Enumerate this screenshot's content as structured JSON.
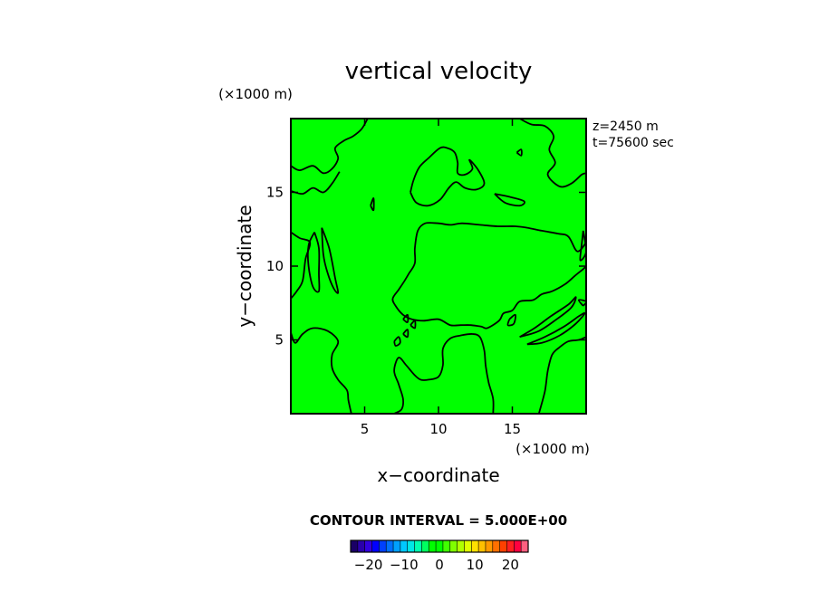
{
  "chart_data": {
    "type": "contour",
    "title": "vertical velocity",
    "xlabel": "x−coordinate",
    "ylabel": "y−coordinate",
    "x_units": "(×1000 m)",
    "y_units": "(×1000 m)",
    "xlim": [
      0,
      20
    ],
    "ylim": [
      0,
      20
    ],
    "x_ticks": [
      5,
      10,
      15
    ],
    "y_ticks": [
      5,
      10,
      15
    ],
    "x_tick_labels": [
      "5",
      "10",
      "15"
    ],
    "y_tick_labels": [
      "5",
      "10",
      "15"
    ],
    "info": [
      "z=2450  m",
      "t=75600  sec"
    ],
    "contour_interval_text": "CONTOUR INTERVAL = 5.000E+00",
    "contour_interval": 5,
    "fill_color": "#00ff00",
    "contour_color": "#000000",
    "colorbar": {
      "range": [
        -25,
        25
      ],
      "tick_values": [
        -20,
        -10,
        0,
        10,
        20
      ],
      "tick_labels": [
        "−20",
        "−10",
        "0",
        "10",
        "20"
      ],
      "colors": [
        "#1a0066",
        "#2a00aa",
        "#3300dd",
        "#0000ff",
        "#0040ff",
        "#0070ff",
        "#00a0ff",
        "#00c8ff",
        "#00e6e6",
        "#00ffb0",
        "#00ff60",
        "#00ff00",
        "#00ff00",
        "#40ff00",
        "#80ff00",
        "#b0ff00",
        "#e0ff00",
        "#ffe000",
        "#ffc000",
        "#ff9900",
        "#ff7000",
        "#ff4000",
        "#ff2020",
        "#ff0040",
        "#ff6080"
      ]
    },
    "contours": [
      [
        [
          0,
          16.8
        ],
        [
          0.6,
          16.5
        ],
        [
          1.5,
          16.8
        ],
        [
          2.2,
          16.3
        ],
        [
          2.8,
          16.6
        ],
        [
          3.2,
          17.3
        ],
        [
          3.0,
          18.0
        ],
        [
          3.6,
          18.5
        ],
        [
          4.2,
          18.8
        ],
        [
          4.8,
          19.3
        ],
        [
          5.2,
          20
        ]
      ],
      [
        [
          0,
          15.1
        ],
        [
          0.8,
          14.9
        ],
        [
          1.5,
          15.3
        ],
        [
          2.2,
          15.0
        ],
        [
          2.8,
          15.6
        ],
        [
          3.3,
          16.4
        ]
      ],
      [
        [
          15.5,
          20
        ],
        [
          16.3,
          19.6
        ],
        [
          17.2,
          19.5
        ],
        [
          17.8,
          18.8
        ],
        [
          17.5,
          17.9
        ],
        [
          17.9,
          17.0
        ],
        [
          17.4,
          16.2
        ],
        [
          18.2,
          15.4
        ],
        [
          19.0,
          15.6
        ],
        [
          19.7,
          16.2
        ],
        [
          20,
          16.3
        ]
      ],
      [
        [
          8.1,
          15.0
        ],
        [
          8.3,
          15.8
        ],
        [
          8.7,
          16.7
        ],
        [
          9.3,
          17.3
        ],
        [
          10.1,
          18.0
        ],
        [
          10.6,
          18.0
        ],
        [
          11.1,
          17.7
        ],
        [
          11.3,
          17.0
        ],
        [
          11.3,
          16.3
        ],
        [
          11.8,
          16.2
        ],
        [
          12.3,
          16.6
        ],
        [
          12.1,
          17.2
        ],
        [
          12.7,
          16.5
        ],
        [
          13.1,
          15.6
        ],
        [
          12.6,
          15.2
        ],
        [
          11.8,
          15.3
        ],
        [
          11.2,
          15.7
        ],
        [
          10.7,
          15.3
        ],
        [
          10.1,
          14.5
        ],
        [
          9.3,
          14.1
        ],
        [
          8.5,
          14.3
        ],
        [
          8.1,
          15.0
        ]
      ],
      [
        [
          5.4,
          14.1
        ],
        [
          5.6,
          14.6
        ],
        [
          5.6,
          13.8
        ],
        [
          5.4,
          14.1
        ]
      ],
      [
        [
          13.8,
          14.9
        ],
        [
          14.8,
          14.7
        ],
        [
          15.8,
          14.4
        ],
        [
          15.5,
          14.1
        ],
        [
          14.5,
          14.3
        ],
        [
          13.8,
          14.9
        ]
      ],
      [
        [
          15.3,
          17.7
        ],
        [
          15.6,
          17.9
        ],
        [
          15.6,
          17.5
        ],
        [
          15.3,
          17.7
        ]
      ],
      [
        [
          0,
          12.3
        ],
        [
          0.6,
          11.9
        ],
        [
          1.3,
          11.6
        ],
        [
          1.0,
          10.5
        ],
        [
          0.8,
          9.0
        ],
        [
          0.4,
          8.3
        ],
        [
          0,
          7.8
        ]
      ],
      [
        [
          1.6,
          12.3
        ],
        [
          1.9,
          11.2
        ],
        [
          1.9,
          9.5
        ],
        [
          1.9,
          8.3
        ],
        [
          1.5,
          8.6
        ],
        [
          1.2,
          10.0
        ],
        [
          1.2,
          11.4
        ],
        [
          1.6,
          12.3
        ]
      ],
      [
        [
          2.1,
          12.6
        ],
        [
          2.6,
          11.2
        ],
        [
          3.0,
          9.2
        ],
        [
          3.2,
          8.2
        ],
        [
          2.9,
          8.5
        ],
        [
          2.5,
          9.5
        ],
        [
          2.2,
          10.8
        ],
        [
          2.1,
          12.6
        ]
      ],
      [
        [
          19.8,
          12.4
        ],
        [
          20,
          11.0
        ],
        [
          19.6,
          10.4
        ],
        [
          19.7,
          11.5
        ],
        [
          19.8,
          12.4
        ]
      ],
      [
        [
          20,
          11.6
        ],
        [
          19.4,
          11.0
        ],
        [
          18.8,
          12.0
        ],
        [
          18.1,
          12.2
        ],
        [
          17.0,
          12.4
        ],
        [
          16.0,
          12.6
        ],
        [
          15.2,
          12.7
        ],
        [
          14.0,
          12.7
        ],
        [
          12.8,
          12.8
        ],
        [
          11.6,
          12.9
        ],
        [
          10.8,
          12.8
        ],
        [
          10.0,
          12.9
        ],
        [
          9.1,
          12.9
        ],
        [
          8.6,
          12.4
        ],
        [
          8.4,
          11.2
        ],
        [
          8.4,
          10.2
        ],
        [
          8.0,
          9.5
        ],
        [
          7.7,
          9.0
        ],
        [
          7.3,
          8.4
        ],
        [
          6.9,
          7.8
        ],
        [
          7.1,
          7.3
        ],
        [
          7.6,
          6.7
        ],
        [
          8.2,
          6.4
        ],
        [
          9.0,
          6.3
        ],
        [
          10.0,
          6.4
        ],
        [
          10.8,
          6.0
        ],
        [
          11.5,
          6.0
        ],
        [
          12.2,
          6.0
        ],
        [
          12.9,
          5.9
        ],
        [
          13.3,
          5.8
        ],
        [
          14.1,
          6.3
        ],
        [
          14.4,
          6.8
        ],
        [
          15.0,
          7.0
        ],
        [
          15.5,
          7.6
        ],
        [
          16.4,
          7.7
        ],
        [
          17.0,
          8.1
        ],
        [
          17.7,
          8.3
        ],
        [
          18.6,
          8.8
        ],
        [
          19.3,
          9.4
        ],
        [
          19.8,
          9.8
        ],
        [
          20,
          10.0
        ]
      ],
      [
        [
          0,
          5.5
        ],
        [
          0.3,
          4.8
        ],
        [
          0.8,
          5.4
        ],
        [
          1.5,
          5.8
        ],
        [
          2.5,
          5.6
        ],
        [
          3.2,
          4.9
        ],
        [
          2.8,
          4.0
        ],
        [
          2.8,
          3.1
        ],
        [
          3.2,
          2.3
        ],
        [
          3.8,
          1.6
        ],
        [
          3.9,
          0.9
        ],
        [
          4.1,
          0
        ]
      ],
      [
        [
          7.0,
          0
        ],
        [
          7.5,
          0.3
        ],
        [
          7.6,
          1.0
        ],
        [
          7.3,
          2.0
        ],
        [
          7.0,
          2.9
        ],
        [
          7.3,
          3.8
        ],
        [
          7.8,
          3.3
        ],
        [
          8.4,
          2.6
        ],
        [
          8.8,
          2.3
        ],
        [
          9.3,
          2.3
        ],
        [
          10.0,
          2.5
        ],
        [
          10.3,
          3.3
        ],
        [
          10.3,
          4.4
        ],
        [
          10.8,
          5.1
        ],
        [
          11.5,
          5.3
        ],
        [
          12.3,
          5.4
        ],
        [
          12.8,
          5.2
        ],
        [
          13.1,
          4.3
        ],
        [
          13.2,
          3.2
        ],
        [
          13.4,
          2.1
        ],
        [
          13.7,
          1.0
        ],
        [
          13.7,
          0
        ]
      ],
      [
        [
          16.8,
          0
        ],
        [
          17.2,
          1.5
        ],
        [
          17.4,
          2.9
        ],
        [
          17.7,
          4.0
        ],
        [
          18.2,
          4.5
        ],
        [
          18.8,
          4.9
        ],
        [
          19.5,
          5.0
        ],
        [
          20,
          5.2
        ]
      ],
      [
        [
          7.0,
          4.9
        ],
        [
          7.3,
          5.2
        ],
        [
          7.4,
          4.8
        ],
        [
          7.1,
          4.6
        ],
        [
          7.0,
          4.9
        ]
      ],
      [
        [
          7.6,
          5.4
        ],
        [
          7.9,
          5.7
        ],
        [
          7.9,
          5.2
        ],
        [
          7.6,
          5.4
        ]
      ],
      [
        [
          8.1,
          6.0
        ],
        [
          8.4,
          6.3
        ],
        [
          8.4,
          5.8
        ],
        [
          8.1,
          6.0
        ]
      ],
      [
        [
          7.6,
          6.4
        ],
        [
          7.9,
          6.7
        ],
        [
          7.9,
          6.2
        ],
        [
          7.6,
          6.4
        ]
      ],
      [
        [
          14.8,
          6.4
        ],
        [
          15.2,
          6.7
        ],
        [
          15.1,
          6.1
        ],
        [
          14.7,
          6.0
        ],
        [
          14.8,
          6.4
        ]
      ],
      [
        [
          15.5,
          5.2
        ],
        [
          16.5,
          5.8
        ],
        [
          17.6,
          6.6
        ],
        [
          18.8,
          7.4
        ],
        [
          19.3,
          7.9
        ],
        [
          19.0,
          7.2
        ],
        [
          18.0,
          6.4
        ],
        [
          16.8,
          5.6
        ],
        [
          15.5,
          5.2
        ]
      ],
      [
        [
          16.0,
          4.7
        ],
        [
          17.2,
          5.2
        ],
        [
          18.5,
          5.9
        ],
        [
          19.5,
          6.6
        ],
        [
          19.9,
          6.8
        ],
        [
          19.3,
          6.1
        ],
        [
          18.2,
          5.3
        ],
        [
          17.0,
          4.8
        ],
        [
          16.0,
          4.7
        ]
      ],
      [
        [
          19.8,
          7.3
        ],
        [
          20,
          7.6
        ],
        [
          19.5,
          7.7
        ],
        [
          19.8,
          7.3
        ]
      ]
    ]
  }
}
